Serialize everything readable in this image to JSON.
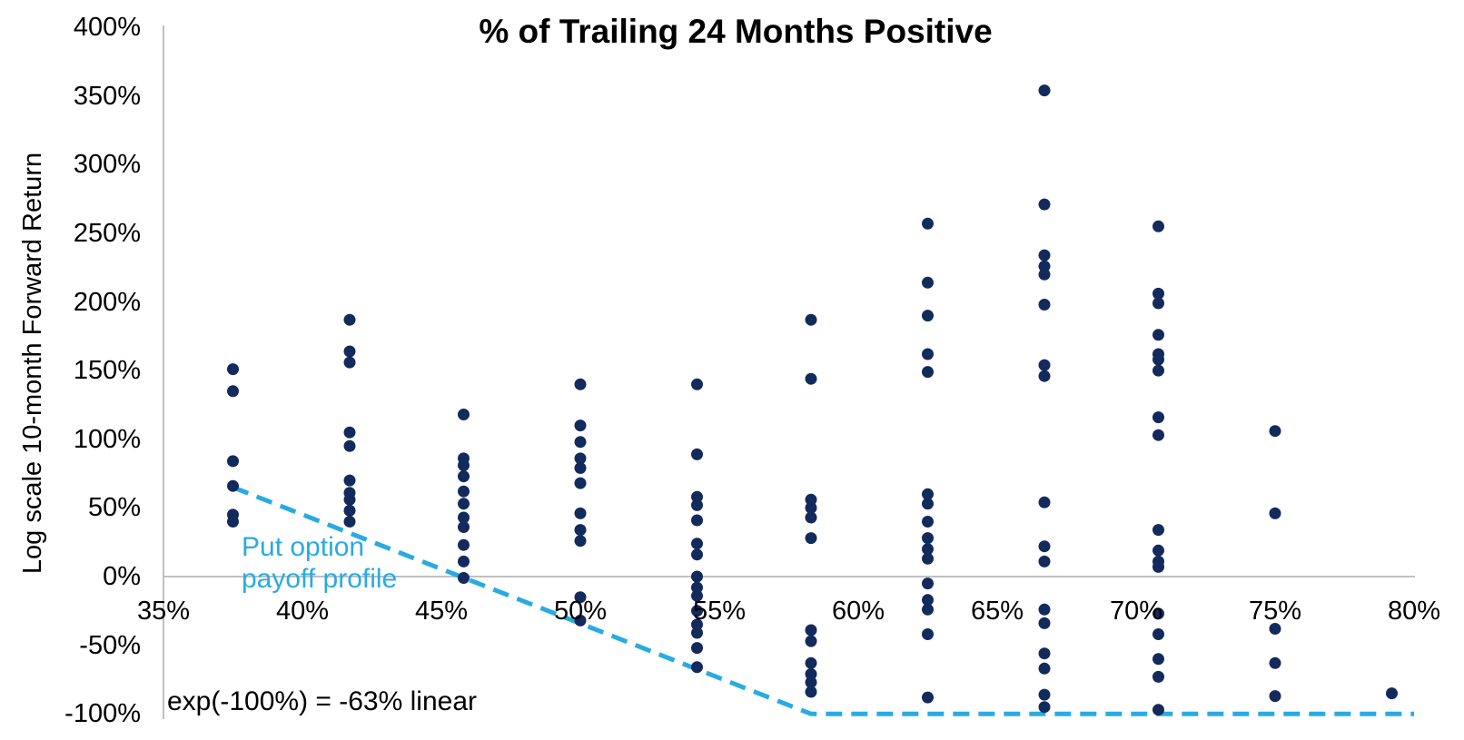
{
  "chart_data": {
    "type": "scatter",
    "title": "% of Trailing 24 Months Positive",
    "xlabel": "",
    "ylabel": "Log scale 10-month Forward Return",
    "x_range": [
      35,
      80
    ],
    "y_range": [
      -100,
      400
    ],
    "x_tick_values": [
      35,
      40,
      45,
      50,
      55,
      60,
      65,
      70,
      75,
      80
    ],
    "x_tick_labels": [
      "35%",
      "40%",
      "45%",
      "50%",
      "55%",
      "60%",
      "65%",
      "70%",
      "75%",
      "80%"
    ],
    "y_tick_values": [
      400,
      350,
      300,
      250,
      200,
      150,
      100,
      50,
      0,
      -50,
      -100
    ],
    "y_tick_labels": [
      "400%",
      "350%",
      "300%",
      "250%",
      "200%",
      "150%",
      "100%",
      "50%",
      "0%",
      "-50%",
      "-100%"
    ],
    "grid": "horizontal zero-line only",
    "legend_position": "none",
    "series": [
      {
        "name": "10-month forward return (log scale) vs % of trailing 24 months positive",
        "marker_color": "#132A5C",
        "columns": [
          {
            "x": 37.5,
            "y_values": [
              151,
              135,
              84,
              66,
              45,
              40
            ]
          },
          {
            "x": 41.7,
            "y_values": [
              187,
              164,
              156,
              105,
              95,
              70,
              61,
              56,
              48,
              40
            ]
          },
          {
            "x": 45.8,
            "y_values": [
              118,
              86,
              81,
              73,
              62,
              53,
              43,
              36,
              23,
              11,
              -1
            ]
          },
          {
            "x": 50.0,
            "y_values": [
              140,
              110,
              98,
              86,
              79,
              68,
              46,
              34,
              26,
              -15,
              -32
            ]
          },
          {
            "x": 54.2,
            "y_values": [
              140,
              89,
              58,
              52,
              41,
              24,
              16,
              0,
              -8,
              -14,
              -25,
              -35,
              -41,
              -52,
              -66
            ]
          },
          {
            "x": 58.3,
            "y_values": [
              187,
              144,
              56,
              50,
              43,
              28,
              -39,
              -47,
              -63,
              -71,
              -77,
              -84
            ]
          },
          {
            "x": 62.5,
            "y_values": [
              257,
              214,
              190,
              162,
              149,
              60,
              53,
              40,
              28,
              20,
              13,
              -5,
              -17,
              -24,
              -42,
              -88
            ]
          },
          {
            "x": 66.7,
            "y_values": [
              354,
              271,
              234,
              226,
              220,
              198,
              154,
              146,
              54,
              22,
              11,
              -24,
              -34,
              -56,
              -67,
              -86,
              -95
            ]
          },
          {
            "x": 70.8,
            "y_values": [
              255,
              206,
              199,
              176,
              162,
              158,
              150,
              116,
              103,
              34,
              19,
              11,
              7,
              -27,
              -42,
              -60,
              -73,
              -97
            ]
          },
          {
            "x": 75.0,
            "y_values": [
              106,
              46,
              -38,
              -63,
              -87
            ]
          },
          {
            "x": 79.2,
            "y_values": [
              -85
            ]
          }
        ]
      }
    ],
    "overlay_line": {
      "name": "Put option payoff profile",
      "color": "#29ABE2",
      "style": "dashed",
      "points_xy": [
        [
          37.5,
          65
        ],
        [
          58.3,
          -100
        ],
        [
          80,
          -100
        ]
      ]
    },
    "annotations": [
      {
        "id": "payoff_label",
        "text": "Put option\npayoff profile",
        "color": "#29ABE2"
      },
      {
        "id": "exp_note",
        "text": "exp(-100%) = -63% linear",
        "color": "#000000"
      }
    ],
    "axis_color": "#C0C0C0"
  }
}
